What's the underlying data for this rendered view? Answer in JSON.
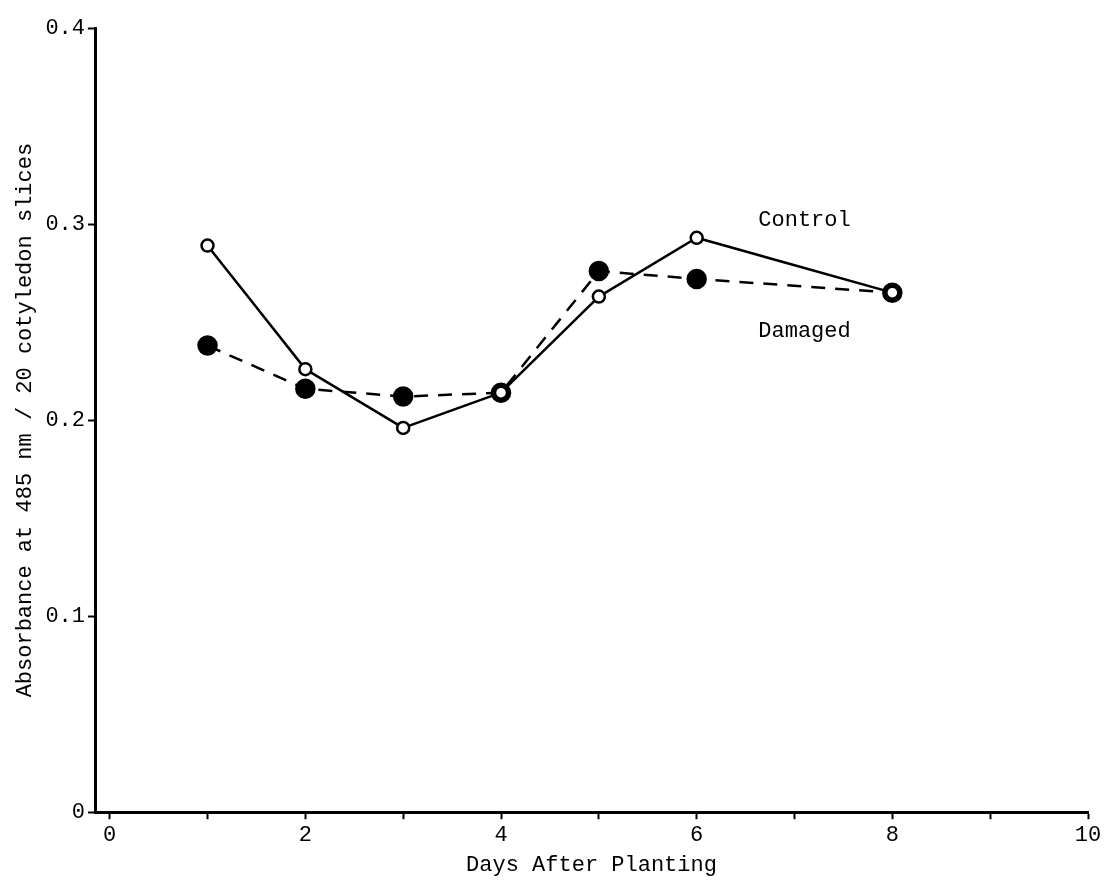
{
  "chart_data": {
    "type": "line",
    "xlabel": "Days After Planting",
    "ylabel": "Absorbance at 485 nm / 20 cotyledon slices",
    "x": [
      1,
      2,
      3,
      4,
      5,
      6,
      8
    ],
    "series": [
      {
        "name": "Control",
        "color": "#000000",
        "line_style": "solid",
        "values": [
          0.289,
          0.226,
          0.196,
          0.214,
          0.263,
          0.293,
          0.265
        ]
      },
      {
        "name": "Damaged",
        "color": "#000000",
        "line_style": "dashed",
        "values": [
          0.238,
          0.216,
          0.212,
          0.214,
          0.276,
          0.272,
          0.265
        ]
      }
    ],
    "marker": "circle",
    "xlim": [
      -0.15,
      10
    ],
    "xticks": [
      0,
      {
        "value": 1,
        "label": null
      },
      2,
      {
        "value": 3,
        "label": null
      },
      4,
      {
        "value": 5,
        "label": null
      },
      6,
      {
        "value": 7,
        "label": null
      },
      8,
      {
        "value": 9,
        "label": null
      },
      10
    ],
    "ylim": [
      0,
      0.4
    ],
    "yticks": [
      0,
      0.1,
      0.2,
      0.3,
      0.4
    ],
    "grid": false,
    "legend": false
  }
}
